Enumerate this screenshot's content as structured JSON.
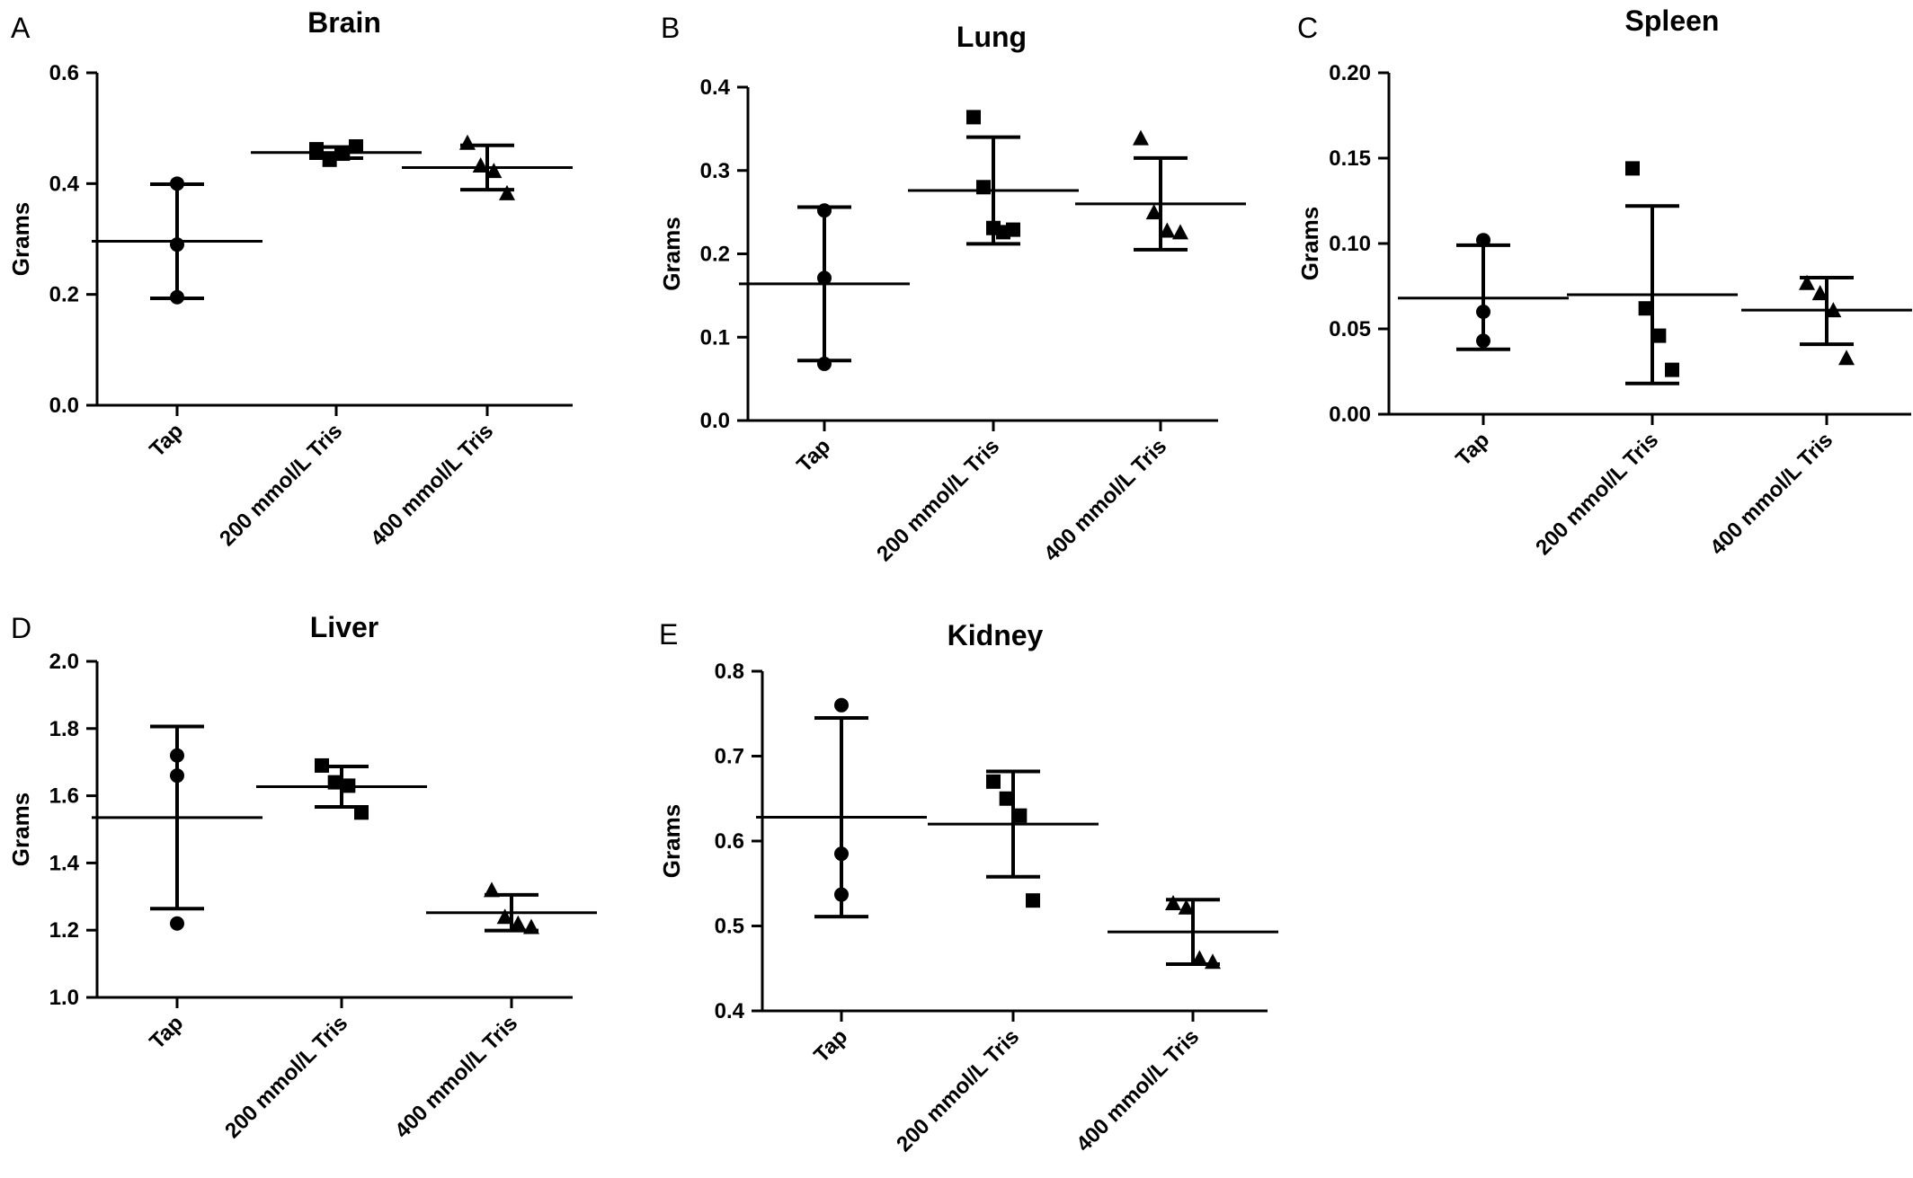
{
  "figure": {
    "ylabel": "Grams",
    "categories": [
      "Tap",
      "200 mmol/L Tris",
      "400 mmol/L Tris"
    ],
    "marker_shapes": [
      "circle",
      "square",
      "triangle"
    ],
    "color": "#000000"
  },
  "chart_data": [
    {
      "panel": "A",
      "title": "Brain",
      "type": "scatter",
      "ylabel": "Grams",
      "ylim": [
        0.0,
        0.6
      ],
      "yticks": [
        "0.0",
        "0.2",
        "0.4",
        "0.6"
      ],
      "categories": [
        "Tap",
        "200 mmol/L Tris",
        "400 mmol/L Tris"
      ],
      "groups": [
        {
          "name": "Tap",
          "points": [
            0.4,
            0.29,
            0.195
          ],
          "mean": 0.296,
          "sd_low": 0.193,
          "sd_high": 0.399
        },
        {
          "name": "200 mmol/L Tris",
          "points": [
            0.462,
            0.443,
            0.454,
            0.467
          ],
          "mean": 0.456,
          "sd_low": 0.446,
          "sd_high": 0.466
        },
        {
          "name": "400 mmol/L Tris",
          "points": [
            0.474,
            0.433,
            0.423,
            0.383
          ],
          "mean": 0.429,
          "sd_low": 0.389,
          "sd_high": 0.469
        }
      ]
    },
    {
      "panel": "B",
      "title": "Lung",
      "type": "scatter",
      "ylabel": "Grams",
      "ylim": [
        0.0,
        0.4
      ],
      "yticks": [
        "0.0",
        "0.1",
        "0.2",
        "0.3",
        "0.4"
      ],
      "categories": [
        "Tap",
        "200 mmol/L Tris",
        "400 mmol/L Tris"
      ],
      "groups": [
        {
          "name": "Tap",
          "points": [
            0.252,
            0.171,
            0.068
          ],
          "mean": 0.164,
          "sd_low": 0.072,
          "sd_high": 0.256
        },
        {
          "name": "200 mmol/L Tris",
          "points": [
            0.364,
            0.28,
            0.231,
            0.226,
            0.229
          ],
          "mean": 0.276,
          "sd_low": 0.212,
          "sd_high": 0.34
        },
        {
          "name": "400 mmol/L Tris",
          "points": [
            0.339,
            0.25,
            0.228,
            0.226
          ],
          "mean": 0.26,
          "sd_low": 0.205,
          "sd_high": 0.315
        }
      ]
    },
    {
      "panel": "C",
      "title": "Spleen",
      "type": "scatter",
      "ylabel": "Grams",
      "ylim": [
        0.0,
        0.2
      ],
      "yticks": [
        "0.00",
        "0.05",
        "0.10",
        "0.15",
        "0.20"
      ],
      "categories": [
        "Tap",
        "200 mmol/L Tris",
        "400 mmol/L Tris"
      ],
      "groups": [
        {
          "name": "Tap",
          "points": [
            0.102,
            0.06,
            0.043
          ],
          "mean": 0.068,
          "sd_low": 0.038,
          "sd_high": 0.099
        },
        {
          "name": "200 mmol/L Tris",
          "points": [
            0.144,
            0.062,
            0.046,
            0.026
          ],
          "mean": 0.07,
          "sd_low": 0.018,
          "sd_high": 0.122
        },
        {
          "name": "400 mmol/L Tris",
          "points": [
            0.077,
            0.071,
            0.061,
            0.033
          ],
          "mean": 0.061,
          "sd_low": 0.041,
          "sd_high": 0.08
        }
      ]
    },
    {
      "panel": "D",
      "title": "Liver",
      "type": "scatter",
      "ylabel": "Grams",
      "ylim": [
        1.0,
        2.0
      ],
      "yticks": [
        "1.0",
        "1.2",
        "1.4",
        "1.6",
        "1.8",
        "2.0"
      ],
      "categories": [
        "Tap",
        "200 mmol/L Tris",
        "400 mmol/L Tris"
      ],
      "groups": [
        {
          "name": "Tap",
          "points": [
            1.72,
            1.66,
            1.22
          ],
          "mean": 1.535,
          "sd_low": 1.264,
          "sd_high": 1.806
        },
        {
          "name": "200 mmol/L Tris",
          "points": [
            1.69,
            1.64,
            1.63,
            1.55
          ],
          "mean": 1.627,
          "sd_low": 1.567,
          "sd_high": 1.687
        },
        {
          "name": "400 mmol/L Tris",
          "points": [
            1.32,
            1.24,
            1.22,
            1.21
          ],
          "mean": 1.252,
          "sd_low": 1.199,
          "sd_high": 1.305
        }
      ]
    },
    {
      "panel": "E",
      "title": "Kidney",
      "type": "scatter",
      "ylabel": "Grams",
      "ylim": [
        0.4,
        0.8
      ],
      "yticks": [
        "0.4",
        "0.5",
        "0.6",
        "0.7",
        "0.8"
      ],
      "categories": [
        "Tap",
        "200 mmol/L Tris",
        "400 mmol/L Tris"
      ],
      "groups": [
        {
          "name": "Tap",
          "points": [
            0.76,
            0.585,
            0.537
          ],
          "mean": 0.628,
          "sd_low": 0.511,
          "sd_high": 0.745
        },
        {
          "name": "200 mmol/L Tris",
          "points": [
            0.67,
            0.65,
            0.63,
            0.53
          ],
          "mean": 0.62,
          "sd_low": 0.558,
          "sd_high": 0.682
        },
        {
          "name": "400 mmol/L Tris",
          "points": [
            0.527,
            0.522,
            0.462,
            0.458
          ],
          "mean": 0.493,
          "sd_low": 0.455,
          "sd_high": 0.531
        }
      ]
    }
  ]
}
